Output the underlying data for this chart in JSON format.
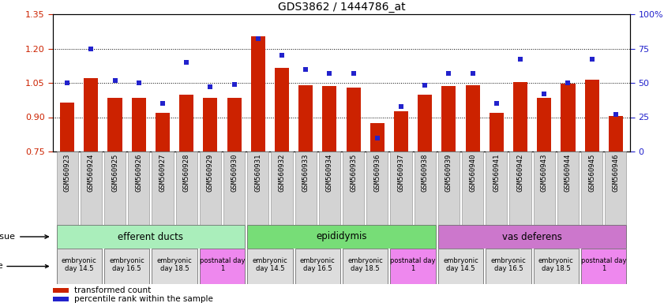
{
  "title": "GDS3862 / 1444786_at",
  "samples": [
    "GSM560923",
    "GSM560924",
    "GSM560925",
    "GSM560926",
    "GSM560927",
    "GSM560928",
    "GSM560929",
    "GSM560930",
    "GSM560931",
    "GSM560932",
    "GSM560933",
    "GSM560934",
    "GSM560935",
    "GSM560936",
    "GSM560937",
    "GSM560938",
    "GSM560939",
    "GSM560940",
    "GSM560941",
    "GSM560942",
    "GSM560943",
    "GSM560944",
    "GSM560945",
    "GSM560946"
  ],
  "transformed_count": [
    0.965,
    1.07,
    0.985,
    0.985,
    0.92,
    1.0,
    0.985,
    0.985,
    1.255,
    1.115,
    1.04,
    1.035,
    1.03,
    0.875,
    0.925,
    1.0,
    1.035,
    1.04,
    0.92,
    1.055,
    0.985,
    1.045,
    1.065,
    0.905
  ],
  "percentile_rank": [
    50,
    75,
    52,
    50,
    35,
    65,
    47,
    49,
    82,
    70,
    60,
    57,
    57,
    10,
    33,
    48,
    57,
    57,
    35,
    67,
    42,
    50,
    67,
    27
  ],
  "ylim_left": [
    0.75,
    1.35
  ],
  "ylim_right": [
    0,
    100
  ],
  "yticks_left": [
    0.75,
    0.9,
    1.05,
    1.2,
    1.35
  ],
  "yticks_right": [
    0,
    25,
    50,
    75,
    100
  ],
  "bar_color": "#cc2200",
  "dot_color": "#2222cc",
  "bar_baseline": 0.75,
  "tissues": [
    {
      "label": "efferent ducts",
      "start": 0,
      "end": 7,
      "color": "#aaeebb"
    },
    {
      "label": "epididymis",
      "start": 8,
      "end": 15,
      "color": "#77dd77"
    },
    {
      "label": "vas deferens",
      "start": 16,
      "end": 23,
      "color": "#cc77cc"
    }
  ],
  "dev_stage_groups": [
    {
      "label": "embryonic\nday 14.5",
      "start": 0,
      "end": 1,
      "color": "#dddddd"
    },
    {
      "label": "embryonic\nday 16.5",
      "start": 2,
      "end": 3,
      "color": "#dddddd"
    },
    {
      "label": "embryonic\nday 18.5",
      "start": 4,
      "end": 5,
      "color": "#dddddd"
    },
    {
      "label": "postnatal day\n1",
      "start": 6,
      "end": 7,
      "color": "#ee88ee"
    },
    {
      "label": "embryonic\nday 14.5",
      "start": 8,
      "end": 9,
      "color": "#dddddd"
    },
    {
      "label": "embryonic\nday 16.5",
      "start": 10,
      "end": 11,
      "color": "#dddddd"
    },
    {
      "label": "embryonic\nday 18.5",
      "start": 12,
      "end": 13,
      "color": "#dddddd"
    },
    {
      "label": "postnatal day\n1",
      "start": 14,
      "end": 15,
      "color": "#ee88ee"
    },
    {
      "label": "embryonic\nday 14.5",
      "start": 16,
      "end": 17,
      "color": "#dddddd"
    },
    {
      "label": "embryonic\nday 16.5",
      "start": 18,
      "end": 19,
      "color": "#dddddd"
    },
    {
      "label": "embryonic\nday 18.5",
      "start": 20,
      "end": 21,
      "color": "#dddddd"
    },
    {
      "label": "postnatal day\n1",
      "start": 22,
      "end": 23,
      "color": "#ee88ee"
    }
  ]
}
